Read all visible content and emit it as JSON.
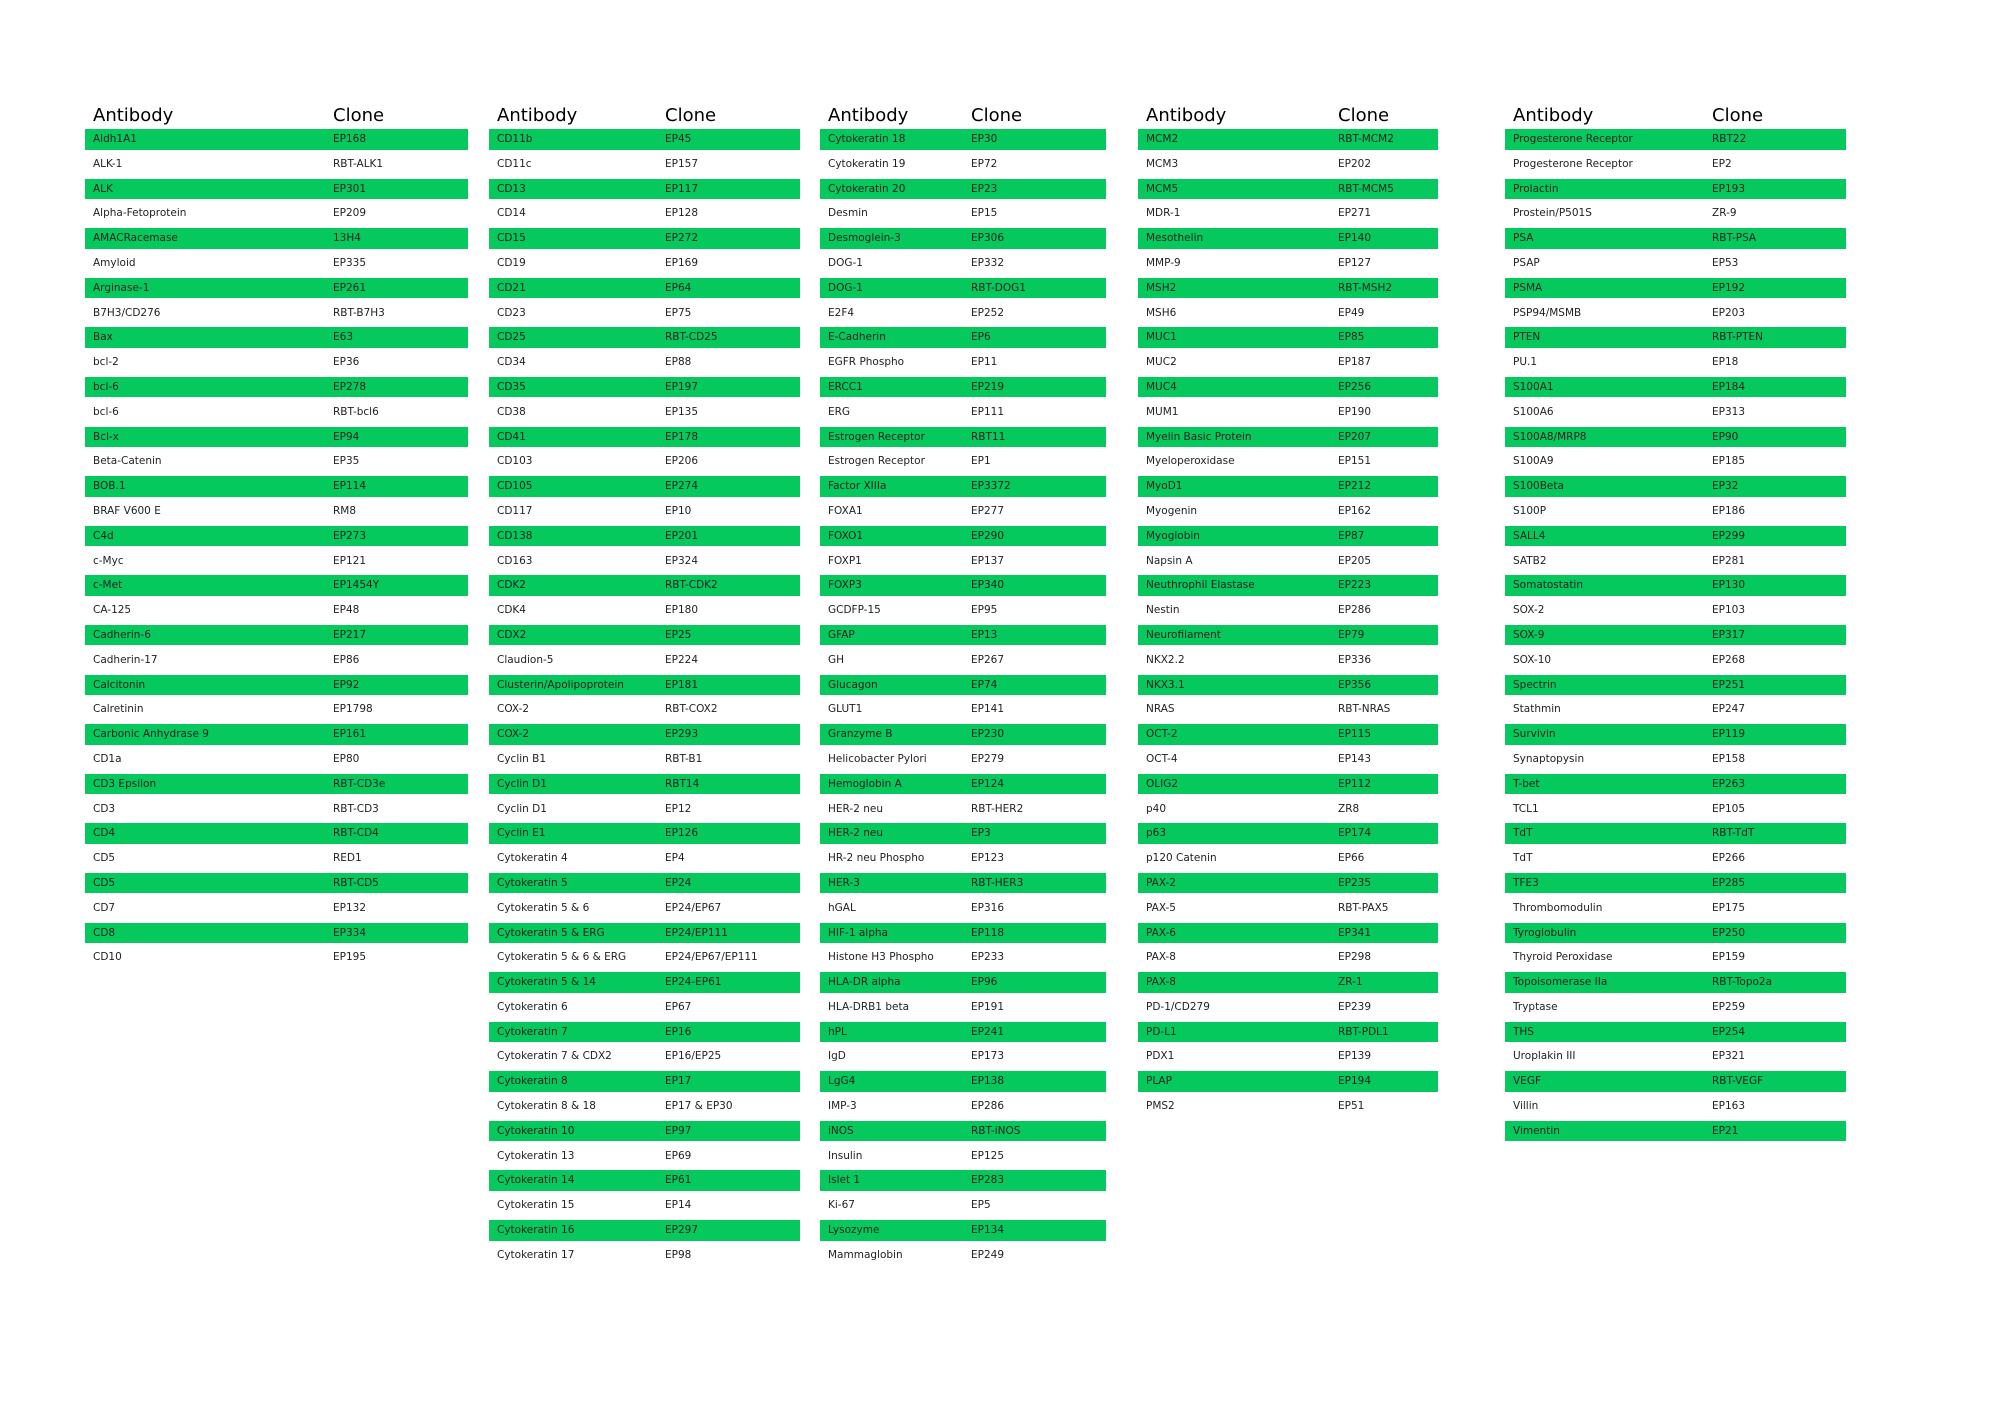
{
  "tables": [
    {
      "headers": [
        "Antibody",
        "Clone"
      ],
      "rows": [
        [
          "Aldh1A1",
          "EP168"
        ],
        [
          "ALK-1",
          "RBT-ALK1"
        ],
        [
          "ALK",
          "EP301"
        ],
        [
          "Alpha-Fetoprotein",
          "EP209"
        ],
        [
          "AMACRacemase",
          "13H4"
        ],
        [
          "Amyloid",
          "EP335"
        ],
        [
          "Arginase-1",
          "EP261"
        ],
        [
          "B7H3/CD276",
          "RBT-B7H3"
        ],
        [
          "Bax",
          "E63"
        ],
        [
          "bcl-2",
          "EP36"
        ],
        [
          "bcl-6",
          "EP278"
        ],
        [
          "bcl-6",
          "RBT-bcl6"
        ],
        [
          "Bcl-x",
          "EP94"
        ],
        [
          "Beta-Catenin",
          "EP35"
        ],
        [
          "BOB.1",
          "EP114"
        ],
        [
          "BRAF V600 E",
          "RM8"
        ],
        [
          "C4d",
          "EP273"
        ],
        [
          "c-Myc",
          "EP121"
        ],
        [
          "c-Met",
          "EP1454Y"
        ],
        [
          "CA-125",
          "EP48"
        ],
        [
          "Cadherin-6",
          "EP217"
        ],
        [
          "Cadherin-17",
          "EP86"
        ],
        [
          "Calcitonin",
          "EP92"
        ],
        [
          "Calretinin",
          "EP1798"
        ],
        [
          "Carbonic Anhydrase 9",
          "EP161"
        ],
        [
          "CD1a",
          "EP80"
        ],
        [
          "CD3 Epsilon",
          "RBT-CD3e"
        ],
        [
          "CD3",
          "RBT-CD3"
        ],
        [
          "CD4",
          "RBT-CD4"
        ],
        [
          "CD5",
          "RED1"
        ],
        [
          "CD5",
          "RBT-CD5"
        ],
        [
          "CD7",
          "EP132"
        ],
        [
          "CD8",
          "EP334"
        ],
        [
          "CD10",
          "EP195"
        ]
      ]
    },
    {
      "headers": [
        "Antibody",
        "Clone"
      ],
      "rows": [
        [
          "CD11b",
          "EP45"
        ],
        [
          "CD11c",
          "EP157"
        ],
        [
          "CD13",
          "EP117"
        ],
        [
          "CD14",
          "EP128"
        ],
        [
          "CD15",
          "EP272"
        ],
        [
          "CD19",
          "EP169"
        ],
        [
          "CD21",
          "EP64"
        ],
        [
          "CD23",
          "EP75"
        ],
        [
          "CD25",
          "RBT-CD25"
        ],
        [
          "CD34",
          "EP88"
        ],
        [
          "CD35",
          "EP197"
        ],
        [
          "CD38",
          "EP135"
        ],
        [
          "CD41",
          "EP178"
        ],
        [
          "CD103",
          "EP206"
        ],
        [
          "CD105",
          "EP274"
        ],
        [
          "CD117",
          "EP10"
        ],
        [
          "CD138",
          "EP201"
        ],
        [
          "CD163",
          "EP324"
        ],
        [
          "CDK2",
          "RBT-CDK2"
        ],
        [
          "CDK4",
          "EP180"
        ],
        [
          "CDX2",
          "EP25"
        ],
        [
          "Claudion-5",
          "EP224"
        ],
        [
          "Clusterin/Apolipoprotein",
          "EP181"
        ],
        [
          "COX-2",
          "RBT-COX2"
        ],
        [
          "COX-2",
          "EP293"
        ],
        [
          "Cyclin B1",
          "RBT-B1"
        ],
        [
          "Cyclin D1",
          "RBT14"
        ],
        [
          "Cyclin D1",
          "EP12"
        ],
        [
          "Cyclin E1",
          "EP126"
        ],
        [
          "Cytokeratin 4",
          "EP4"
        ],
        [
          "Cytokeratin 5",
          "EP24"
        ],
        [
          "Cytokeratin 5 & 6",
          "EP24/EP67"
        ],
        [
          "Cytokeratin 5 & ERG",
          "EP24/EP111"
        ],
        [
          "Cytokeratin 5 & 6 & ERG",
          "EP24/EP67/EP111"
        ],
        [
          "Cytokeratin 5 & 14",
          "EP24-EP61"
        ],
        [
          "Cytokeratin 6",
          "EP67"
        ],
        [
          "Cytokeratin 7",
          "EP16"
        ],
        [
          "Cytokeratin 7 & CDX2",
          "EP16/EP25"
        ],
        [
          "Cytokeratin 8",
          "EP17"
        ],
        [
          "Cytokeratin 8 & 18",
          "EP17 & EP30"
        ],
        [
          "Cytokeratin 10",
          "EP97"
        ],
        [
          "Cytokeratin 13",
          "EP69"
        ],
        [
          "Cytokeratin 14",
          "EP61"
        ],
        [
          "Cytokeratin 15",
          "EP14"
        ],
        [
          "Cytokeratin 16",
          "EP297"
        ],
        [
          "Cytokeratin 17",
          "EP98"
        ]
      ]
    },
    {
      "headers": [
        "Antibody",
        "Clone"
      ],
      "rows": [
        [
          "Cytokeratin 18",
          "EP30"
        ],
        [
          "Cytokeratin 19",
          "EP72"
        ],
        [
          "Cytokeratin 20",
          "EP23"
        ],
        [
          "Desmin",
          "EP15"
        ],
        [
          "Desmoglein-3",
          "EP306"
        ],
        [
          "DOG-1",
          "EP332"
        ],
        [
          "DOG-1",
          "RBT-DOG1"
        ],
        [
          "E2F4",
          "EP252"
        ],
        [
          "E-Cadherin",
          "EP6"
        ],
        [
          "EGFR Phospho",
          "EP11"
        ],
        [
          "ERCC1",
          "EP219"
        ],
        [
          "ERG",
          "EP111"
        ],
        [
          "Estrogen Receptor",
          "RBT11"
        ],
        [
          "Estrogen Receptor",
          "EP1"
        ],
        [
          "Factor XIIIa",
          "EP3372"
        ],
        [
          "FOXA1",
          "EP277"
        ],
        [
          "FOXO1",
          "EP290"
        ],
        [
          "FOXP1",
          "EP137"
        ],
        [
          "FOXP3",
          "EP340"
        ],
        [
          "GCDFP-15",
          "EP95"
        ],
        [
          "GFAP",
          "EP13"
        ],
        [
          "GH",
          "EP267"
        ],
        [
          "Glucagon",
          "EP74"
        ],
        [
          "GLUT1",
          "EP141"
        ],
        [
          "Granzyme B",
          "EP230"
        ],
        [
          "Helicobacter Pylori",
          "EP279"
        ],
        [
          "Hemoglobin A",
          "EP124"
        ],
        [
          "HER-2 neu",
          "RBT-HER2"
        ],
        [
          "HER-2 neu",
          "EP3"
        ],
        [
          "HR-2 neu Phospho",
          "EP123"
        ],
        [
          "HER-3",
          "RBT-HER3"
        ],
        [
          "hGAL",
          "EP316"
        ],
        [
          "HIF-1 alpha",
          "EP118"
        ],
        [
          "Histone H3 Phospho",
          "EP233"
        ],
        [
          "HLA-DR alpha",
          "EP96"
        ],
        [
          "HLA-DRB1 beta",
          "EP191"
        ],
        [
          "hPL",
          "EP241"
        ],
        [
          "IgD",
          "EP173"
        ],
        [
          "LgG4",
          "EP138"
        ],
        [
          "IMP-3",
          "EP286"
        ],
        [
          "iNOS",
          "RBT-iNOS"
        ],
        [
          "Insulin",
          "EP125"
        ],
        [
          "Islet 1",
          "EP283"
        ],
        [
          "Ki-67",
          "EP5"
        ],
        [
          "Lysozyme",
          "EP134"
        ],
        [
          "Mammaglobin",
          "EP249"
        ]
      ]
    },
    {
      "headers": [
        "Antibody",
        "Clone"
      ],
      "rows": [
        [
          "MCM2",
          "RBT-MCM2"
        ],
        [
          "MCM3",
          "EP202"
        ],
        [
          "MCM5",
          "RBT-MCM5"
        ],
        [
          "MDR-1",
          "EP271"
        ],
        [
          "Mesothelin",
          "EP140"
        ],
        [
          "MMP-9",
          "EP127"
        ],
        [
          "MSH2",
          "RBT-MSH2"
        ],
        [
          "MSH6",
          "EP49"
        ],
        [
          "MUC1",
          "EP85"
        ],
        [
          "MUC2",
          "EP187"
        ],
        [
          "MUC4",
          "EP256"
        ],
        [
          "MUM1",
          "EP190"
        ],
        [
          "Myelin Basic Protein",
          "EP207"
        ],
        [
          "Myeloperoxidase",
          "EP151"
        ],
        [
          "MyoD1",
          "EP212"
        ],
        [
          "Myogenin",
          "EP162"
        ],
        [
          "Myoglobin",
          "EP87"
        ],
        [
          "Napsin A",
          "EP205"
        ],
        [
          "Neuthrophil Elastase",
          "EP223"
        ],
        [
          "Nestin",
          "EP286"
        ],
        [
          "Neurofilament",
          "EP79"
        ],
        [
          "NKX2.2",
          "EP336"
        ],
        [
          "NKX3.1",
          "EP356"
        ],
        [
          "NRAS",
          "RBT-NRAS"
        ],
        [
          "OCT-2",
          "EP115"
        ],
        [
          "OCT-4",
          "EP143"
        ],
        [
          "OLIG2",
          "EP112"
        ],
        [
          "p40",
          "ZR8"
        ],
        [
          "p63",
          "EP174"
        ],
        [
          "p120 Catenin",
          "EP66"
        ],
        [
          "PAX-2",
          "EP235"
        ],
        [
          "PAX-5",
          "RBT-PAX5"
        ],
        [
          "PAX-6",
          "EP341"
        ],
        [
          "PAX-8",
          "EP298"
        ],
        [
          "PAX-8",
          "ZR-1"
        ],
        [
          "PD-1/CD279",
          "EP239"
        ],
        [
          "PD-L1",
          "RBT-PDL1"
        ],
        [
          "PDX1",
          "EP139"
        ],
        [
          "PLAP",
          "EP194"
        ],
        [
          "PMS2",
          "EP51"
        ]
      ]
    },
    {
      "headers": [
        "Antibody",
        "Clone"
      ],
      "rows": [
        [
          "Progesterone Receptor",
          "RBT22"
        ],
        [
          "Progesterone Receptor",
          "EP2"
        ],
        [
          "Prolactin",
          "EP193"
        ],
        [
          "Prostein/P501S",
          "ZR-9"
        ],
        [
          "PSA",
          "RBT-PSA"
        ],
        [
          "PSAP",
          "EP53"
        ],
        [
          "PSMA",
          "EP192"
        ],
        [
          "PSP94/MSMB",
          "EP203"
        ],
        [
          "PTEN",
          "RBT-PTEN"
        ],
        [
          "PU.1",
          "EP18"
        ],
        [
          "S100A1",
          "EP184"
        ],
        [
          "S100A6",
          "EP313"
        ],
        [
          "S100A8/MRP8",
          "EP90"
        ],
        [
          "S100A9",
          "EP185"
        ],
        [
          "S100Beta",
          "EP32"
        ],
        [
          "S100P",
          "EP186"
        ],
        [
          "SALL4",
          "EP299"
        ],
        [
          "SATB2",
          "EP281"
        ],
        [
          "Somatostatin",
          "EP130"
        ],
        [
          "SOX-2",
          "EP103"
        ],
        [
          "SOX-9",
          "EP317"
        ],
        [
          "SOX-10",
          "EP268"
        ],
        [
          "Spectrin",
          "EP251"
        ],
        [
          "Stathmin",
          "EP247"
        ],
        [
          "Survivin",
          "EP119"
        ],
        [
          "Synaptopysin",
          "EP158"
        ],
        [
          "T-bet",
          "EP263"
        ],
        [
          "TCL1",
          "EP105"
        ],
        [
          "TdT",
          "RBT-TdT"
        ],
        [
          "TdT",
          "EP266"
        ],
        [
          "TFE3",
          "EP285"
        ],
        [
          "Thrombomodulin",
          "EP175"
        ],
        [
          "Tyroglobulin",
          "EP250"
        ],
        [
          "Thyroid Peroxidase",
          "EP159"
        ],
        [
          "Topoisomerase IIa",
          "RBT-Topo2a"
        ],
        [
          "Tryptase",
          "EP259"
        ],
        [
          "THS",
          "EP254"
        ],
        [
          "Uroplakin III",
          "EP321"
        ],
        [
          "VEGF",
          "RBT-VEGF"
        ],
        [
          "Villin",
          "EP163"
        ],
        [
          "Vimentin",
          "EP21"
        ]
      ]
    }
  ]
}
